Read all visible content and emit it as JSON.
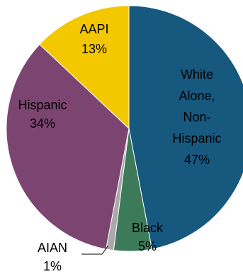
{
  "chart_data": {
    "type": "pie",
    "title": "",
    "slices": [
      {
        "label": [
          "White",
          "Alone,",
          "Non-",
          "Hispanic"
        ],
        "value": 47,
        "display": "47%",
        "color": "#17587f"
      },
      {
        "label": [
          "Black"
        ],
        "value": 5,
        "display": "5%",
        "color": "#3c7a5a"
      },
      {
        "label": [
          "AIAN"
        ],
        "value": 1,
        "display": "1%",
        "color": "#a9a9a9"
      },
      {
        "label": [
          "Hispanic"
        ],
        "value": 34,
        "display": "34%",
        "color": "#7c4571"
      },
      {
        "label": [
          "AAPI"
        ],
        "value": 13,
        "display": "13%",
        "color": "#f3c800"
      }
    ],
    "legend": "none"
  }
}
